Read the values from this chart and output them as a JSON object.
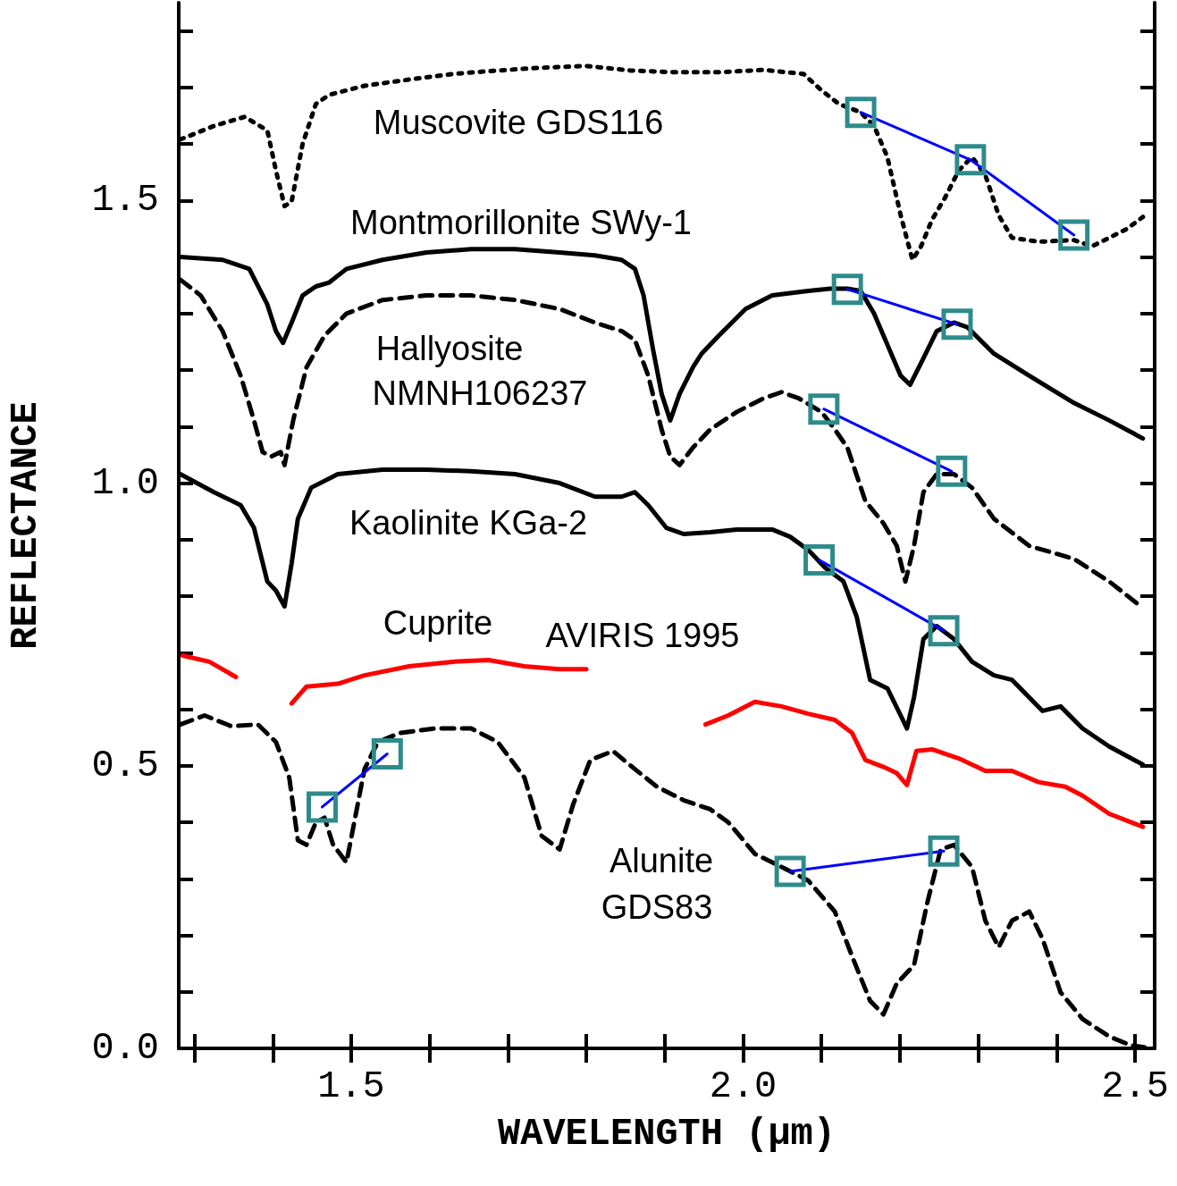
{
  "chart_data": {
    "type": "line",
    "xlabel": "WAVELENGTH (μm)",
    "ylabel": "REFLECTANCE",
    "xlim": [
      1.28,
      2.525
    ],
    "ylim": [
      0,
      1.85
    ],
    "xticks": [
      {
        "value": 1.3,
        "label": null
      },
      {
        "value": 1.4,
        "label": null
      },
      {
        "value": 1.5,
        "label": "1.5"
      },
      {
        "value": 1.6,
        "label": null
      },
      {
        "value": 1.7,
        "label": null
      },
      {
        "value": 1.8,
        "label": null
      },
      {
        "value": 1.9,
        "label": null
      },
      {
        "value": 2.0,
        "label": "2.0"
      },
      {
        "value": 2.1,
        "label": null
      },
      {
        "value": 2.2,
        "label": null
      },
      {
        "value": 2.3,
        "label": null
      },
      {
        "value": 2.4,
        "label": null
      },
      {
        "value": 2.5,
        "label": "2.5"
      }
    ],
    "yticks": [
      {
        "value": 0,
        "label": "0.0"
      },
      {
        "value": 0.1,
        "label": null
      },
      {
        "value": 0.2,
        "label": null
      },
      {
        "value": 0.3,
        "label": null
      },
      {
        "value": 0.4,
        "label": null
      },
      {
        "value": 0.5,
        "label": "0.5"
      },
      {
        "value": 0.6,
        "label": null
      },
      {
        "value": 0.7,
        "label": null
      },
      {
        "value": 0.8,
        "label": null
      },
      {
        "value": 0.9,
        "label": null
      },
      {
        "value": 1.0,
        "label": "1.0"
      },
      {
        "value": 1.1,
        "label": null
      },
      {
        "value": 1.2,
        "label": null
      },
      {
        "value": 1.3,
        "label": null
      },
      {
        "value": 1.4,
        "label": null
      },
      {
        "value": 1.5,
        "label": "1.5"
      },
      {
        "value": 1.6,
        "label": null
      },
      {
        "value": 1.7,
        "label": null
      },
      {
        "value": 1.8,
        "label": null
      }
    ],
    "series": [
      {
        "color": "#000000",
        "line_style": "dotted",
        "x": [
          1.282,
          1.325,
          1.364,
          1.393,
          1.404,
          1.415,
          1.424,
          1.438,
          1.455,
          1.472,
          1.517,
          1.574,
          1.63,
          1.687,
          1.743,
          1.8,
          1.856,
          1.913,
          1.969,
          2.026,
          2.077,
          2.1,
          2.122,
          2.15,
          2.167,
          2.184,
          2.201,
          2.216,
          2.227,
          2.241,
          2.258,
          2.275,
          2.292,
          2.309,
          2.326,
          2.343,
          2.377,
          2.422,
          2.445,
          2.467,
          2.49,
          2.51
        ],
        "values": [
          1.608,
          1.632,
          1.648,
          1.624,
          1.553,
          1.49,
          1.498,
          1.6,
          1.671,
          1.687,
          1.703,
          1.714,
          1.724,
          1.73,
          1.735,
          1.738,
          1.73,
          1.727,
          1.727,
          1.731,
          1.724,
          1.695,
          1.671,
          1.656,
          1.632,
          1.577,
          1.474,
          1.395,
          1.419,
          1.466,
          1.506,
          1.553,
          1.577,
          1.545,
          1.474,
          1.434,
          1.427,
          1.43,
          1.419,
          1.434,
          1.45,
          1.471
        ]
      },
      {
        "color": "#000000",
        "line_style": "solid",
        "x": [
          1.282,
          1.336,
          1.37,
          1.393,
          1.404,
          1.413,
          1.424,
          1.438,
          1.455,
          1.472,
          1.494,
          1.54,
          1.596,
          1.653,
          1.709,
          1.766,
          1.811,
          1.845,
          1.862,
          1.873,
          1.885,
          1.896,
          1.907,
          1.919,
          1.936,
          1.947,
          1.969,
          2.003,
          2.037,
          2.083,
          2.111,
          2.133,
          2.15,
          2.167,
          2.184,
          2.201,
          2.213,
          2.23,
          2.247,
          2.269,
          2.286,
          2.32,
          2.365,
          2.422,
          2.467,
          2.51
        ],
        "values": [
          1.4,
          1.395,
          1.379,
          1.316,
          1.269,
          1.248,
          1.284,
          1.332,
          1.348,
          1.355,
          1.379,
          1.395,
          1.408,
          1.414,
          1.414,
          1.408,
          1.403,
          1.395,
          1.379,
          1.332,
          1.237,
          1.158,
          1.111,
          1.158,
          1.205,
          1.229,
          1.261,
          1.308,
          1.332,
          1.34,
          1.344,
          1.344,
          1.34,
          1.3,
          1.245,
          1.19,
          1.174,
          1.221,
          1.269,
          1.284,
          1.276,
          1.229,
          1.19,
          1.142,
          1.111,
          1.079
        ]
      },
      {
        "color": "#000000",
        "line_style": "dashed",
        "x": [
          1.282,
          1.308,
          1.336,
          1.359,
          1.376,
          1.387,
          1.398,
          1.41,
          1.415,
          1.426,
          1.443,
          1.466,
          1.494,
          1.54,
          1.596,
          1.653,
          1.709,
          1.766,
          1.811,
          1.845,
          1.862,
          1.879,
          1.896,
          1.907,
          1.919,
          1.936,
          1.958,
          1.992,
          2.026,
          2.049,
          2.071,
          2.1,
          2.117,
          2.133,
          2.156,
          2.179,
          2.196,
          2.207,
          2.218,
          2.23,
          2.247,
          2.269,
          2.292,
          2.32,
          2.365,
          2.422,
          2.467,
          2.51
        ],
        "values": [
          1.36,
          1.332,
          1.269,
          1.19,
          1.111,
          1.055,
          1.047,
          1.055,
          1.032,
          1.111,
          1.205,
          1.261,
          1.3,
          1.324,
          1.332,
          1.332,
          1.324,
          1.308,
          1.284,
          1.269,
          1.253,
          1.19,
          1.095,
          1.047,
          1.032,
          1.063,
          1.095,
          1.126,
          1.15,
          1.161,
          1.15,
          1.126,
          1.095,
          1.063,
          0.968,
          0.929,
          0.889,
          0.826,
          0.889,
          0.984,
          1.016,
          1.016,
          0.992,
          0.937,
          0.889,
          0.866,
          0.826,
          0.779
        ]
      },
      {
        "color": "#000000",
        "line_style": "solid",
        "x": [
          1.282,
          1.325,
          1.359,
          1.376,
          1.393,
          1.404,
          1.415,
          1.424,
          1.432,
          1.449,
          1.483,
          1.54,
          1.596,
          1.653,
          1.709,
          1.766,
          1.811,
          1.845,
          1.862,
          1.879,
          1.902,
          1.924,
          1.958,
          1.992,
          2.037,
          2.06,
          2.083,
          2.105,
          2.128,
          2.145,
          2.162,
          2.184,
          2.201,
          2.209,
          2.218,
          2.23,
          2.247,
          2.269,
          2.292,
          2.32,
          2.343,
          2.382,
          2.405,
          2.433,
          2.467,
          2.51
        ],
        "values": [
          1.016,
          0.984,
          0.961,
          0.921,
          0.826,
          0.81,
          0.782,
          0.858,
          0.937,
          0.992,
          1.016,
          1.024,
          1.024,
          1.021,
          1.016,
          1.0,
          0.976,
          0.976,
          0.984,
          0.961,
          0.921,
          0.91,
          0.913,
          0.918,
          0.918,
          0.905,
          0.882,
          0.85,
          0.826,
          0.763,
          0.652,
          0.637,
          0.589,
          0.566,
          0.621,
          0.724,
          0.747,
          0.724,
          0.684,
          0.66,
          0.652,
          0.597,
          0.605,
          0.566,
          0.534,
          0.502
        ]
      },
      {
        "color": "#ff0000",
        "line_style": "solid",
        "x": [
          1.285,
          1.319,
          1.353,
          1.39,
          1.424,
          1.443,
          1.483,
          1.517,
          1.574,
          1.63,
          1.675,
          1.721,
          1.766,
          1.8,
          1.88,
          1.952,
          1.981,
          2.015,
          2.049,
          2.083,
          2.117,
          2.139,
          2.156,
          2.179,
          2.196,
          2.209,
          2.221,
          2.241,
          2.275,
          2.309,
          2.343,
          2.377,
          2.411,
          2.433,
          2.467,
          2.51
        ],
        "values": [
          0.695,
          0.684,
          0.657,
          null,
          0.61,
          0.64,
          0.645,
          0.66,
          0.676,
          0.684,
          0.687,
          0.676,
          0.671,
          0.671,
          null,
          0.573,
          0.589,
          0.613,
          0.605,
          0.592,
          0.581,
          0.558,
          0.51,
          0.498,
          0.487,
          0.466,
          0.526,
          0.529,
          0.513,
          0.491,
          0.491,
          0.471,
          0.463,
          0.447,
          0.415,
          0.392
        ]
      },
      {
        "color": "#000000",
        "line_style": "dashed",
        "x": [
          1.282,
          1.313,
          1.347,
          1.381,
          1.404,
          1.421,
          1.432,
          1.443,
          1.455,
          1.466,
          1.477,
          1.494,
          1.506,
          1.517,
          1.534,
          1.562,
          1.607,
          1.653,
          1.687,
          1.721,
          1.743,
          1.766,
          1.783,
          1.805,
          1.834,
          1.862,
          1.89,
          1.924,
          1.958,
          1.981,
          2.015,
          2.049,
          2.083,
          2.117,
          2.139,
          2.162,
          2.179,
          2.196,
          2.218,
          2.235,
          2.252,
          2.269,
          2.292,
          2.309,
          2.326,
          2.343,
          2.365,
          2.382,
          2.405,
          2.433,
          2.467,
          2.495,
          2.512
        ],
        "values": [
          0.573,
          0.589,
          0.57,
          0.573,
          0.542,
          0.479,
          0.368,
          0.36,
          0.4,
          0.408,
          0.36,
          0.329,
          0.415,
          0.494,
          0.542,
          0.558,
          0.566,
          0.566,
          0.542,
          0.479,
          0.376,
          0.352,
          0.431,
          0.51,
          0.526,
          0.494,
          0.463,
          0.439,
          0.423,
          0.4,
          0.344,
          0.321,
          0.297,
          0.242,
          0.163,
          0.084,
          0.06,
          0.115,
          0.147,
          0.258,
          0.352,
          0.36,
          0.321,
          0.226,
          0.179,
          0.226,
          0.242,
          0.194,
          0.099,
          0.052,
          0.021,
          0.005,
          0.002
        ]
      },
      {
        "color": "#0000ff",
        "line_style": "solid",
        "marker": "square",
        "x": [
          2.15,
          2.29,
          2.422
        ],
        "values": [
          1.656,
          1.572,
          1.439
        ],
        "colors": [
          "#2e8b8b",
          "#2e8b8b",
          "#2e8b8b"
        ]
      },
      {
        "color": "#0000ff",
        "line_style": "solid",
        "marker": "square",
        "x": [
          2.133,
          2.273
        ],
        "values": [
          1.343,
          1.281
        ],
        "colors": [
          "#2e8b8b",
          "#2e8b8b"
        ]
      },
      {
        "color": "#0000ff",
        "line_style": "solid",
        "marker": "square",
        "x": [
          2.103,
          2.266
        ],
        "values": [
          1.131,
          1.021
        ],
        "colors": [
          "#2e8b8b",
          "#2e8b8b"
        ]
      },
      {
        "color": "#0000ff",
        "line_style": "solid",
        "marker": "square",
        "x": [
          2.097,
          2.256
        ],
        "values": [
          0.864,
          0.739
        ],
        "colors": [
          "#2e8b8b",
          "#2e8b8b"
        ]
      },
      {
        "color": "#0000ff",
        "line_style": "solid",
        "marker": "square",
        "x": [
          1.463,
          1.546
        ],
        "values": [
          0.427,
          0.521
        ],
        "colors": [
          "#2e8b8b",
          "#2e8b8b"
        ]
      },
      {
        "color": "#0000ff",
        "line_style": "solid",
        "marker": "square",
        "x": [
          2.06,
          2.256
        ],
        "values": [
          0.313,
          0.349
        ],
        "colors": [
          "#2e8b8b",
          "#2e8b8b"
        ]
      }
    ],
    "annotations": [
      "Muscovite GDS116",
      "Montmorillonite SWy-1",
      "Hallyosite",
      "NMNH106237",
      "Kaolinite KGa-2",
      "Cuprite",
      "AVIRIS 1995",
      "Alunite",
      "GDS83"
    ]
  }
}
